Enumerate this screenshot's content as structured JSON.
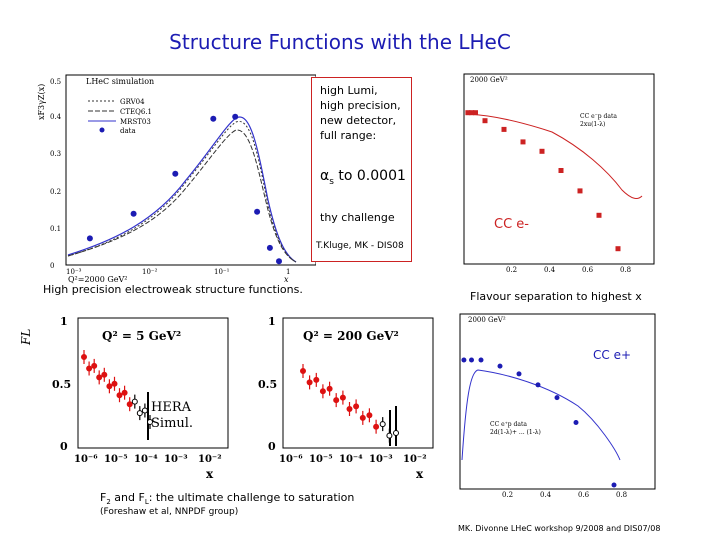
{
  "slide": {
    "title": "Structure Functions with the LHeC",
    "caption_left": "High precision electroweak  structure functions.",
    "caption_right": "Flavour separation to highest x",
    "fl_caption_line1_pre": "F",
    "fl_caption_line1_sub2": "2",
    "fl_caption_line1_mid": " and F",
    "fl_caption_line1_subL": "L",
    "fl_caption_line1_post": ": the ultimate challenge to saturation",
    "fl_caption_line2": "(Foreshaw et al, NNPDF group)",
    "footer": "MK. Divonne LHeC workshop 9/2008 and DIS07/08"
  },
  "note_box": {
    "lines": [
      "high Lumi,",
      "high precision,",
      "new detector,",
      "full range:"
    ],
    "alpha_prefix": "α",
    "alpha_sub": "s",
    "alpha_rest": " to 0.0001",
    "thy": "thy challenge",
    "credit": "T.Kluge, MK - DIS08"
  },
  "colors": {
    "title": "#1c1cb3",
    "blue": "#1c1cb3",
    "red": "#cc2222",
    "note_border": "#cc2222"
  },
  "chart_data": [
    {
      "type": "line",
      "id": "xF3",
      "header": "LHeC simulation",
      "ylabel": "xF3γZ(x)",
      "q2_label": "Q²=2000 GeV²",
      "xlabel_short": "x",
      "ylim": [
        0,
        0.5
      ],
      "y_ticks": [
        "0",
        "0.1",
        "0.2",
        "0.3",
        "0.4",
        "0.5"
      ],
      "x_ticks": [
        "10⁻³",
        "10⁻²",
        "10⁻¹",
        "1"
      ],
      "legend": [
        "GRV04",
        "CTEQ6.1",
        "MRST03",
        "data"
      ],
      "data_points": [
        {
          "x": 0.002,
          "y": 0.07
        },
        {
          "x": 0.008,
          "y": 0.135
        },
        {
          "x": 0.03,
          "y": 0.24
        },
        {
          "x": 0.1,
          "y": 0.385
        },
        {
          "x": 0.2,
          "y": 0.39
        },
        {
          "x": 0.4,
          "y": 0.14
        },
        {
          "x": 0.6,
          "y": 0.045
        },
        {
          "x": 0.8,
          "y": 0.01
        }
      ]
    },
    {
      "type": "scatter",
      "id": "cc_em",
      "header": "2000 GeV²",
      "label": "CC e-",
      "label_sup": "-",
      "legend": [
        "CC e⁻p data",
        "2xu(1-λ)"
      ],
      "x_ticks": [
        "0.2",
        "0.4",
        "0.6",
        "0.8"
      ],
      "y_log": true,
      "points": [
        {
          "x": 0.01,
          "y": 2.0
        },
        {
          "x": 0.03,
          "y": 2.0
        },
        {
          "x": 0.05,
          "y": 2.0
        },
        {
          "x": 0.1,
          "y": 1.5
        },
        {
          "x": 0.2,
          "y": 1.1
        },
        {
          "x": 0.3,
          "y": 0.7
        },
        {
          "x": 0.4,
          "y": 0.5
        },
        {
          "x": 0.5,
          "y": 0.25
        },
        {
          "x": 0.6,
          "y": 0.12
        },
        {
          "x": 0.7,
          "y": 0.05
        },
        {
          "x": 0.8,
          "y": 0.015
        }
      ]
    },
    {
      "type": "scatter",
      "id": "fl_q5",
      "header": "Q² = 5 GeV²",
      "ylabel": "FL",
      "xlabel": "x",
      "ylim": [
        0,
        1
      ],
      "y_ticks": [
        "0",
        "0.5",
        "1"
      ],
      "x_ticks": [
        "10⁻⁶",
        "10⁻⁵",
        "10⁻⁴",
        "10⁻³",
        "10⁻²"
      ],
      "legend": [
        "HERA",
        "Simul."
      ]
    },
    {
      "type": "scatter",
      "id": "fl_q200",
      "header": "Q² = 200 GeV²",
      "xlabel": "x",
      "ylim": [
        0,
        1
      ],
      "y_ticks": [
        "0",
        "0.5",
        "1"
      ],
      "x_ticks": [
        "10⁻⁶",
        "10⁻⁵",
        "10⁻⁴",
        "10⁻³",
        "10⁻²"
      ]
    },
    {
      "type": "scatter",
      "id": "cc_ep",
      "header": "2000 GeV²",
      "label": "CC e+",
      "label_sup": "+",
      "legend": [
        "CC e⁺p data",
        "2d(1-λ)+ ... (1-λ)"
      ],
      "x_ticks": [
        "0.2",
        "0.4",
        "0.6",
        "0.8"
      ],
      "y_log": true,
      "points": [
        {
          "x": 0.01,
          "y": 1.0
        },
        {
          "x": 0.05,
          "y": 1.0
        },
        {
          "x": 0.1,
          "y": 1.0
        },
        {
          "x": 0.2,
          "y": 0.8
        },
        {
          "x": 0.3,
          "y": 0.6
        },
        {
          "x": 0.4,
          "y": 0.4
        },
        {
          "x": 0.5,
          "y": 0.25
        },
        {
          "x": 0.6,
          "y": 0.1
        },
        {
          "x": 0.8,
          "y": 0.01
        }
      ]
    }
  ]
}
